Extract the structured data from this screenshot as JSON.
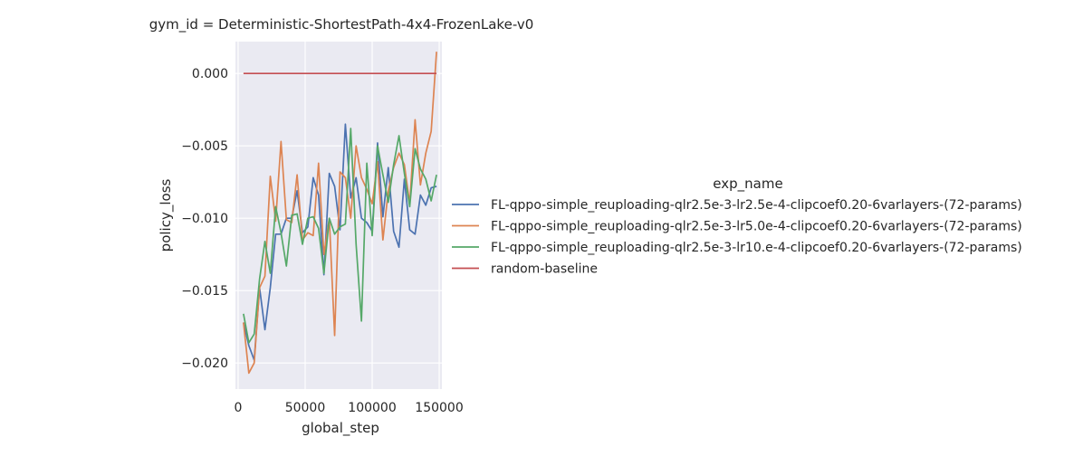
{
  "chart_data": {
    "type": "line",
    "title": "gym_id = Deterministic-ShortestPath-4x4-FrozenLake-v0",
    "xlabel": "global_step",
    "ylabel": "policy_loss",
    "xlim": [
      -2000,
      152000
    ],
    "ylim": [
      -0.0218,
      0.0022
    ],
    "xticks": [
      0,
      50000,
      100000,
      150000
    ],
    "xtick_labels": [
      "0",
      "50000",
      "100000",
      "150000"
    ],
    "yticks": [
      0.0,
      -0.005,
      -0.01,
      -0.015,
      -0.02
    ],
    "ytick_labels": [
      "0.000",
      "−0.005",
      "−0.010",
      "−0.015",
      "−0.020"
    ],
    "grid": true,
    "legend_title": "exp_name",
    "legend_position": "right",
    "series": [
      {
        "name": "FL-qppo-simple_reuploading-qlr2.5e-3-lr2.5e-4-clipcoef0.20-6varlayers-(72-params)",
        "color": "#4c72b0",
        "x": [
          4000,
          8000,
          12000,
          16000,
          20000,
          24000,
          28000,
          32000,
          36000,
          40000,
          44000,
          48000,
          52000,
          56000,
          60000,
          64000,
          68000,
          72000,
          76000,
          80000,
          84000,
          88000,
          92000,
          96000,
          100000,
          104000,
          108000,
          112000,
          116000,
          120000,
          124000,
          128000,
          132000,
          136000,
          140000,
          144000,
          148000
        ],
        "y": [
          -0.0172,
          -0.0188,
          -0.0198,
          -0.0148,
          -0.0177,
          -0.0148,
          -0.0111,
          -0.0111,
          -0.01,
          -0.01,
          -0.0081,
          -0.011,
          -0.0106,
          -0.0072,
          -0.0084,
          -0.0139,
          -0.0069,
          -0.0078,
          -0.0108,
          -0.0035,
          -0.0086,
          -0.0072,
          -0.01,
          -0.0103,
          -0.0109,
          -0.0048,
          -0.0099,
          -0.0065,
          -0.0109,
          -0.012,
          -0.0073,
          -0.0108,
          -0.0111,
          -0.0084,
          -0.0091,
          -0.0079,
          -0.0078
        ]
      },
      {
        "name": "FL-qppo-simple_reuploading-qlr2.5e-3-lr5.0e-4-clipcoef0.20-6varlayers-(72-params)",
        "color": "#dd8452",
        "x": [
          4000,
          8000,
          12000,
          16000,
          20000,
          24000,
          28000,
          32000,
          36000,
          40000,
          44000,
          48000,
          52000,
          56000,
          60000,
          64000,
          68000,
          72000,
          76000,
          80000,
          84000,
          88000,
          92000,
          96000,
          100000,
          104000,
          108000,
          112000,
          116000,
          120000,
          124000,
          128000,
          132000,
          136000,
          140000,
          144000,
          148000
        ],
        "y": [
          -0.0172,
          -0.0207,
          -0.02,
          -0.0148,
          -0.014,
          -0.0071,
          -0.0102,
          -0.0047,
          -0.0101,
          -0.0103,
          -0.007,
          -0.0115,
          -0.011,
          -0.0112,
          -0.0062,
          -0.0125,
          -0.01,
          -0.0181,
          -0.0068,
          -0.0072,
          -0.01,
          -0.005,
          -0.0072,
          -0.008,
          -0.009,
          -0.0061,
          -0.0115,
          -0.0081,
          -0.0065,
          -0.0055,
          -0.0063,
          -0.009,
          -0.0032,
          -0.0077,
          -0.0055,
          -0.004,
          0.0015
        ]
      },
      {
        "name": "FL-qppo-simple_reuploading-qlr2.5e-3-lr10.e-4-clipcoef0.20-6varlayers-(72-params)",
        "color": "#55a868",
        "x": [
          4000,
          8000,
          12000,
          16000,
          20000,
          24000,
          28000,
          32000,
          36000,
          40000,
          44000,
          48000,
          52000,
          56000,
          60000,
          64000,
          68000,
          72000,
          76000,
          80000,
          84000,
          88000,
          92000,
          96000,
          100000,
          104000,
          108000,
          112000,
          116000,
          120000,
          124000,
          128000,
          132000,
          136000,
          140000,
          144000,
          148000
        ],
        "y": [
          -0.0166,
          -0.0186,
          -0.018,
          -0.0142,
          -0.0116,
          -0.0138,
          -0.0092,
          -0.011,
          -0.0133,
          -0.0098,
          -0.0097,
          -0.0118,
          -0.01,
          -0.0099,
          -0.0107,
          -0.0138,
          -0.01,
          -0.0111,
          -0.0106,
          -0.0104,
          -0.0038,
          -0.0118,
          -0.0171,
          -0.0062,
          -0.0112,
          -0.005,
          -0.007,
          -0.0089,
          -0.0063,
          -0.0043,
          -0.0069,
          -0.0092,
          -0.0052,
          -0.0066,
          -0.0073,
          -0.0088,
          -0.007
        ]
      },
      {
        "name": "random-baseline",
        "color": "#c44e52",
        "x": [
          4000,
          148000
        ],
        "y": [
          0.0,
          0.0
        ]
      }
    ]
  }
}
